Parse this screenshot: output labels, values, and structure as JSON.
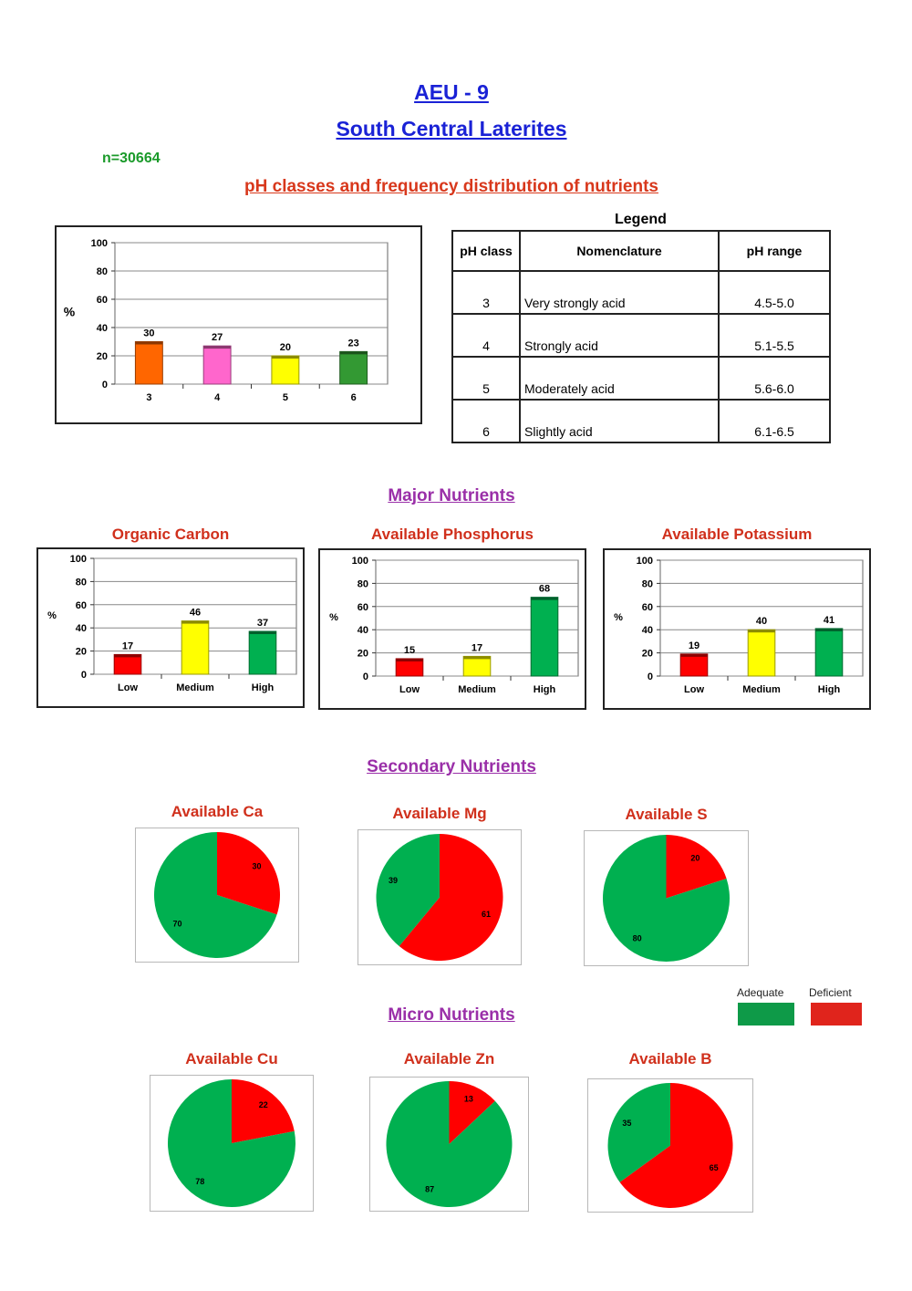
{
  "header": {
    "title": "AEU - 9",
    "subtitle": "South Central Laterites",
    "sample_size": "n=30664",
    "ph_section_title": "pH classes and frequency distribution of nutrients",
    "major_title": "Major Nutrients",
    "secondary_title": "Secondary Nutrients",
    "micro_title": "Micro Nutrients"
  },
  "legend": {
    "title": "Legend",
    "headers": [
      "pH class",
      "Nomenclature",
      "pH range"
    ],
    "rows": [
      [
        "3",
        "Very strongly acid",
        "4.5-5.0"
      ],
      [
        "4",
        "Strongly acid",
        "5.1-5.5"
      ],
      [
        "5",
        "Moderately acid",
        "5.6-6.0"
      ],
      [
        "6",
        "Slightly acid",
        "6.1-6.5"
      ]
    ]
  },
  "pie_key": {
    "adequate_label": "Adequate",
    "deficient_label": "Deficient",
    "adequate_color": "#0e9a48",
    "deficient_color": "#e0241c"
  },
  "chart_data": [
    {
      "id": "ph",
      "type": "bar",
      "title": "",
      "categories": [
        "3",
        "4",
        "5",
        "6"
      ],
      "values": [
        30,
        27,
        20,
        23
      ],
      "colors": [
        "#ff6600",
        "#ff66cc",
        "#ffff00",
        "#339933"
      ],
      "ylabel": "%",
      "ylim": [
        0,
        100
      ],
      "yticks": [
        "0",
        "20",
        "40",
        "60",
        "80",
        "100"
      ],
      "grid": true
    },
    {
      "id": "oc",
      "type": "bar",
      "title": "Organic Carbon",
      "categories": [
        "Low",
        "Medium",
        "High"
      ],
      "values": [
        17,
        46,
        37
      ],
      "colors": [
        "#ff0000",
        "#ffff00",
        "#00b050"
      ],
      "ylabel": "%",
      "ylim": [
        0,
        100
      ],
      "yticks": [
        "0",
        "20",
        "40",
        "60",
        "80",
        "100"
      ],
      "grid": true
    },
    {
      "id": "p",
      "type": "bar",
      "title": "Available Phosphorus",
      "categories": [
        "Low",
        "Medium",
        "High"
      ],
      "values": [
        15,
        17,
        68
      ],
      "colors": [
        "#ff0000",
        "#ffff00",
        "#00b050"
      ],
      "ylabel": "%",
      "ylim": [
        0,
        100
      ],
      "yticks": [
        "0",
        "20",
        "40",
        "60",
        "80",
        "100"
      ],
      "grid": true
    },
    {
      "id": "k",
      "type": "bar",
      "title": "Available Potassium",
      "categories": [
        "Low",
        "Medium",
        "High"
      ],
      "values": [
        19,
        40,
        41
      ],
      "colors": [
        "#ff0000",
        "#ffff00",
        "#00b050"
      ],
      "ylabel": "%",
      "ylim": [
        0,
        100
      ],
      "yticks": [
        "0",
        "20",
        "40",
        "60",
        "80",
        "100"
      ],
      "grid": true
    },
    {
      "id": "ca",
      "type": "pie",
      "title": "Available Ca",
      "labels": [
        "Deficient",
        "Adequate"
      ],
      "values": [
        30,
        70
      ],
      "colors": [
        "#ff0000",
        "#00b050"
      ]
    },
    {
      "id": "mg",
      "type": "pie",
      "title": "Available Mg",
      "labels": [
        "Deficient",
        "Adequate"
      ],
      "values": [
        61,
        39
      ],
      "colors": [
        "#ff0000",
        "#00b050"
      ]
    },
    {
      "id": "s",
      "type": "pie",
      "title": "Available S",
      "labels": [
        "Deficient",
        "Adequate"
      ],
      "values": [
        20,
        80
      ],
      "colors": [
        "#ff0000",
        "#00b050"
      ]
    },
    {
      "id": "cu",
      "type": "pie",
      "title": "Available Cu",
      "labels": [
        "Deficient",
        "Adequate"
      ],
      "values": [
        22,
        78
      ],
      "colors": [
        "#ff0000",
        "#00b050"
      ]
    },
    {
      "id": "zn",
      "type": "pie",
      "title": "Available Zn",
      "labels": [
        "Deficient",
        "Adequate"
      ],
      "values": [
        13,
        87
      ],
      "colors": [
        "#ff0000",
        "#00b050"
      ]
    },
    {
      "id": "b",
      "type": "pie",
      "title": "Available B",
      "labels": [
        "Deficient",
        "Adequate"
      ],
      "values": [
        65,
        35
      ],
      "colors": [
        "#ff0000",
        "#00b050"
      ]
    }
  ]
}
